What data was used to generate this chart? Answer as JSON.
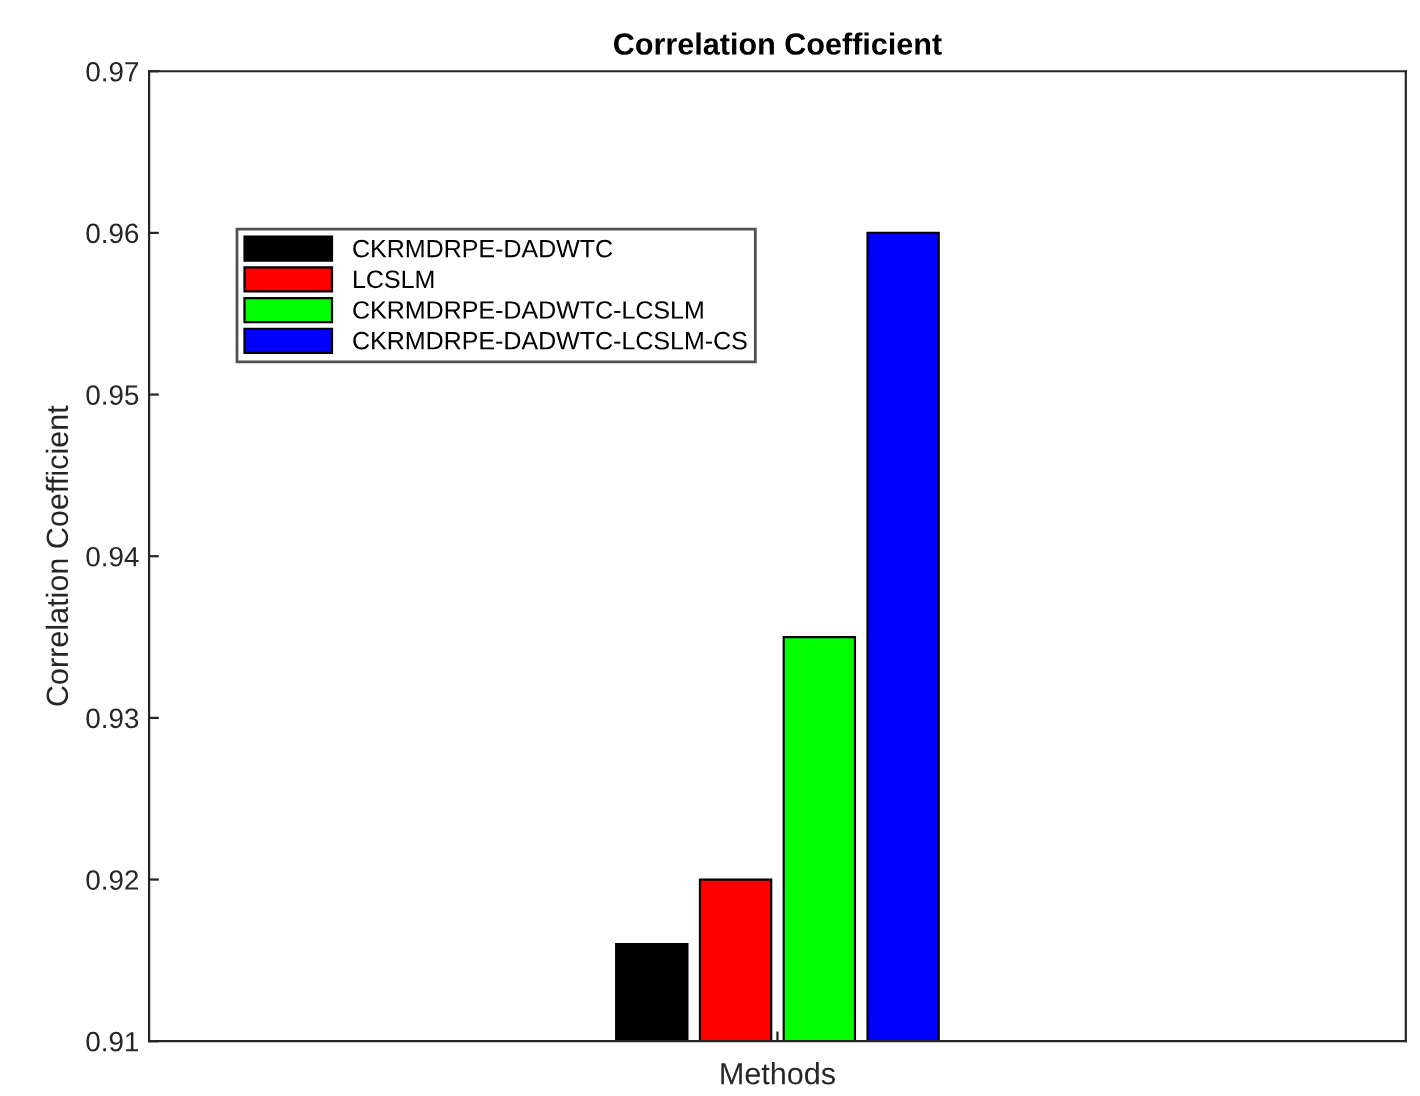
{
  "chart_data": {
    "type": "bar",
    "title": "Correlation Coefficient",
    "xlabel": "Methods",
    "ylabel": "Correlation Coefficient",
    "categories": [
      null
    ],
    "series": [
      {
        "name": "CKRMDRPE-DADWTC",
        "color": "#000000",
        "values": [
          0.916
        ]
      },
      {
        "name": "LCSLM",
        "color": "#ff0000",
        "values": [
          0.92
        ]
      },
      {
        "name": "CKRMDRPE-DADWTC-LCSLM",
        "color": "#00ff00",
        "values": [
          0.935
        ]
      },
      {
        "name": "CKRMDRPE-DADWTC-LCSLM-CS",
        "color": "#0000ff",
        "values": [
          0.96
        ]
      }
    ],
    "ylim": [
      0.91,
      0.97
    ],
    "yticks": [
      0.91,
      0.92,
      0.93,
      0.94,
      0.95,
      0.96,
      0.97
    ],
    "grid": false,
    "legend": "top left"
  }
}
